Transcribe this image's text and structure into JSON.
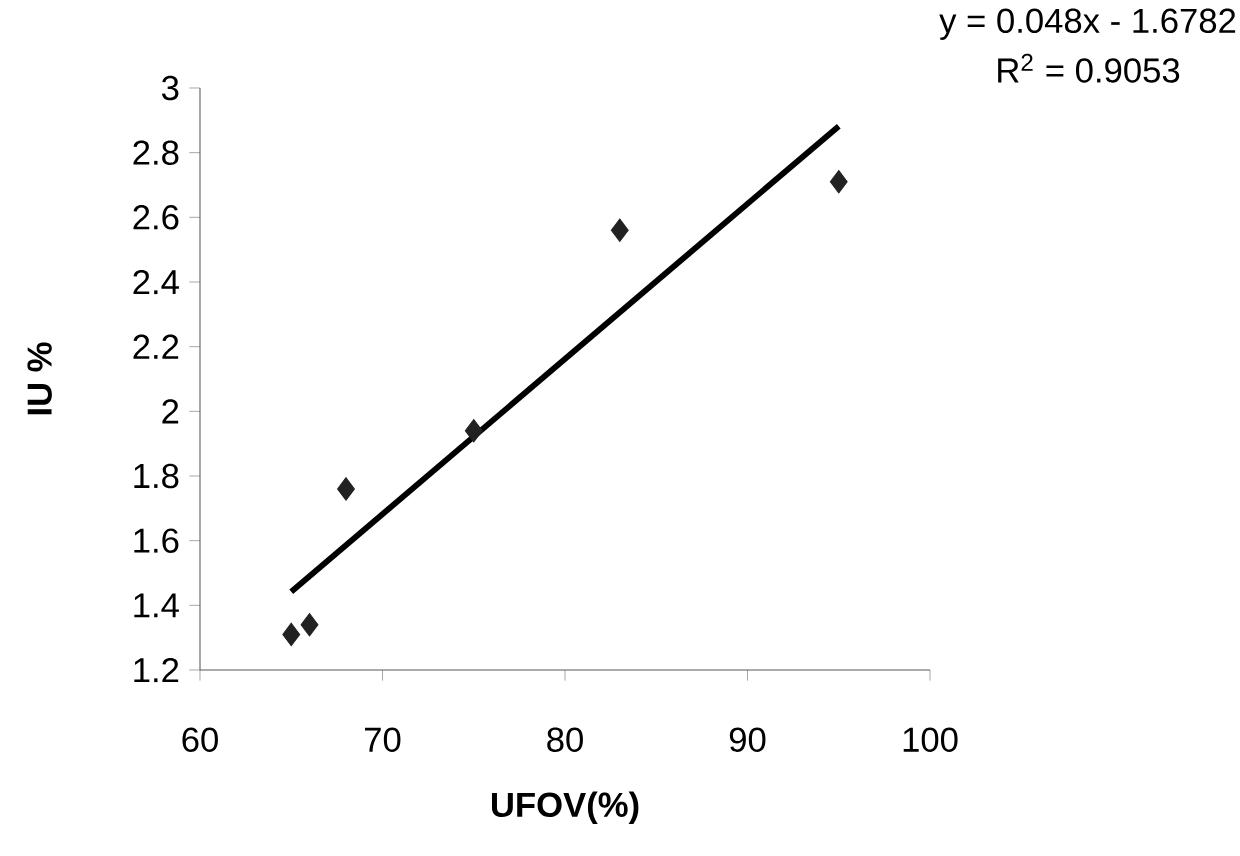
{
  "chart_data": {
    "type": "scatter",
    "xlabel": "UFOV(%)",
    "ylabel": "IU %",
    "xlim": [
      60,
      100
    ],
    "xticks": [
      60,
      70,
      80,
      90,
      100
    ],
    "ylim": [
      1.2,
      3
    ],
    "yticks": [
      1.2,
      1.4,
      1.6,
      1.8,
      2,
      2.2,
      2.4,
      2.6,
      2.8,
      3
    ],
    "grid": false,
    "marker": "diamond",
    "series": [
      {
        "color": "#222222",
        "x": [
          65,
          66,
          68,
          75,
          83,
          95
        ],
        "values": [
          1.31,
          1.34,
          1.76,
          1.94,
          2.56,
          2.71
        ]
      },
      {
        "type": "line",
        "marker": "none",
        "color": "#000000",
        "x": [
          65,
          95
        ],
        "values": [
          1.442,
          2.882
        ]
      }
    ],
    "annotations": [
      "y = 0.048x - 1.6782",
      "R$^{2}$ = 0.9053"
    ]
  }
}
